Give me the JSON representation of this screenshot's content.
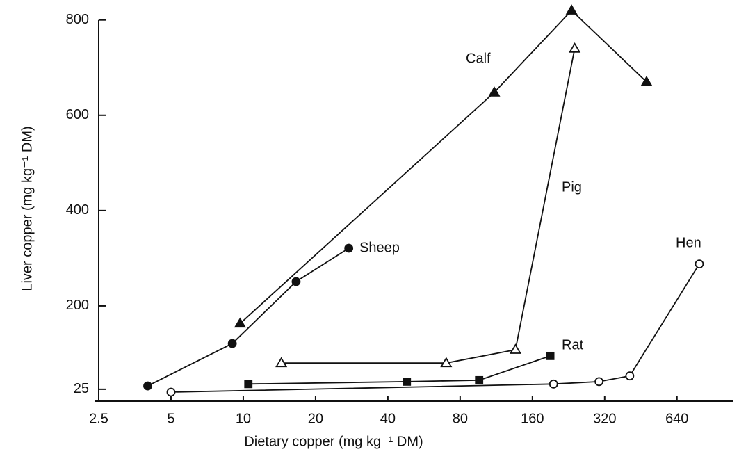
{
  "chart_data": {
    "type": "line",
    "x_label": "Dietary copper (mg kg⁻¹ DM)",
    "y_label": "Liver copper (mg kg⁻¹ DM)",
    "xscale": "log",
    "xlim": [
      2.5,
      1100
    ],
    "xticks": [
      2.5,
      5,
      10,
      20,
      40,
      80,
      160,
      320,
      640
    ],
    "ylim": [
      0,
      820
    ],
    "yticks": [
      25,
      200,
      400,
      600,
      800
    ],
    "grid": false,
    "series": [
      {
        "name": "Calf",
        "color": "#111111",
        "marker": "filled-triangle",
        "x": [
          9.7,
          111,
          233,
          478
        ],
        "values": [
          163,
          648,
          820,
          670
        ]
      },
      {
        "name": "Pig",
        "color": "#111111",
        "marker": "open-triangle",
        "x": [
          14.4,
          70,
          136,
          240
        ],
        "values": [
          80,
          80,
          108,
          740
        ]
      },
      {
        "name": "Sheep",
        "color": "#111111",
        "marker": "filled-circle",
        "x": [
          4,
          9,
          16.6,
          27.5
        ],
        "values": [
          32,
          121,
          251,
          321
        ]
      },
      {
        "name": "Rat",
        "color": "#111111",
        "marker": "filled-square",
        "x": [
          10.5,
          48,
          96,
          190
        ],
        "values": [
          36,
          41,
          44,
          95
        ]
      },
      {
        "name": "Hen",
        "color": "#111111",
        "marker": "open-circle",
        "x": [
          5,
          196,
          303,
          407,
          793
        ],
        "values": [
          19,
          36,
          41,
          53,
          288
        ]
      }
    ]
  }
}
